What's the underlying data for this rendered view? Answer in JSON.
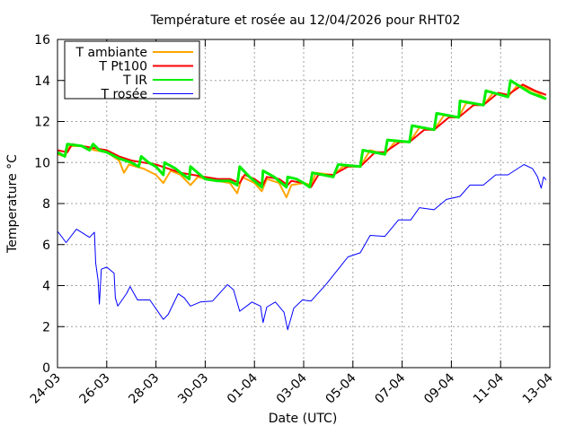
{
  "chart_data": {
    "type": "line",
    "title": "Température et rosée au 12/04/2026 pour RHT02",
    "xlabel": "Date (UTC)",
    "ylabel": "Temperature °C",
    "x_unit": "days since 24-03",
    "xlim": [
      0,
      20
    ],
    "ylim": [
      0,
      16
    ],
    "grid": true,
    "legend_position": "top-left",
    "x_ticks": [
      {
        "value": 0,
        "label": "24-03"
      },
      {
        "value": 2,
        "label": "26-03"
      },
      {
        "value": 4,
        "label": "28-03"
      },
      {
        "value": 6,
        "label": "30-03"
      },
      {
        "value": 8,
        "label": "01-04"
      },
      {
        "value": 10,
        "label": "03-04"
      },
      {
        "value": 12,
        "label": "05-04"
      },
      {
        "value": 14,
        "label": "07-04"
      },
      {
        "value": 16,
        "label": "09-04"
      },
      {
        "value": 18,
        "label": "11-04"
      },
      {
        "value": 20,
        "label": "13-04"
      }
    ],
    "y_ticks": [
      0,
      2,
      4,
      6,
      8,
      10,
      12,
      14,
      16
    ],
    "series": [
      {
        "name": "T ambiante",
        "color": "#ffa500",
        "points": [
          [
            0,
            10.4
          ],
          [
            0.3,
            10.3
          ],
          [
            0.5,
            10.8
          ],
          [
            1,
            10.8
          ],
          [
            1.5,
            10.6
          ],
          [
            2,
            10.5
          ],
          [
            2.5,
            10.1
          ],
          [
            2.7,
            9.5
          ],
          [
            2.9,
            9.9
          ],
          [
            3.5,
            9.7
          ],
          [
            4,
            9.4
          ],
          [
            4.3,
            9.0
          ],
          [
            4.6,
            9.6
          ],
          [
            5,
            9.4
          ],
          [
            5.4,
            8.9
          ],
          [
            5.7,
            9.3
          ],
          [
            6,
            9.2
          ],
          [
            6.5,
            9.1
          ],
          [
            7,
            9.0
          ],
          [
            7.3,
            8.5
          ],
          [
            7.5,
            9.3
          ],
          [
            8,
            9.0
          ],
          [
            8.3,
            8.6
          ],
          [
            8.5,
            9.2
          ],
          [
            9,
            9.0
          ],
          [
            9.3,
            8.3
          ],
          [
            9.5,
            8.9
          ],
          [
            10,
            9.0
          ],
          [
            10.3,
            8.9
          ],
          [
            10.5,
            9.5
          ],
          [
            11.2,
            9.4
          ],
          [
            11.6,
            9.8
          ],
          [
            12.3,
            9.8
          ],
          [
            12.7,
            10.6
          ],
          [
            13.3,
            10.4
          ],
          [
            13.7,
            11.0
          ],
          [
            14.3,
            11.0
          ],
          [
            14.7,
            11.7
          ],
          [
            15.3,
            11.6
          ],
          [
            15.7,
            12.3
          ],
          [
            16.3,
            12.2
          ],
          [
            16.6,
            12.9
          ],
          [
            17.3,
            12.8
          ],
          [
            17.7,
            13.4
          ],
          [
            18.3,
            13.2
          ],
          [
            18.7,
            13.8
          ],
          [
            19.5,
            13.4
          ],
          [
            19.85,
            13.1
          ]
        ]
      },
      {
        "name": "T Pt100",
        "color": "#ff0000",
        "points": [
          [
            0,
            10.6
          ],
          [
            0.4,
            10.5
          ],
          [
            0.6,
            10.9
          ],
          [
            1,
            10.8
          ],
          [
            1.5,
            10.7
          ],
          [
            2,
            10.6
          ],
          [
            2.5,
            10.3
          ],
          [
            3,
            10.1
          ],
          [
            3.5,
            10.0
          ],
          [
            4,
            9.9
          ],
          [
            4.5,
            9.7
          ],
          [
            5,
            9.5
          ],
          [
            5.5,
            9.4
          ],
          [
            6,
            9.3
          ],
          [
            6.5,
            9.2
          ],
          [
            7,
            9.2
          ],
          [
            7.4,
            9.0
          ],
          [
            7.6,
            9.4
          ],
          [
            8,
            9.2
          ],
          [
            8.35,
            8.9
          ],
          [
            8.5,
            9.3
          ],
          [
            9,
            9.2
          ],
          [
            9.35,
            8.9
          ],
          [
            9.5,
            9.1
          ],
          [
            10,
            9.0
          ],
          [
            10.3,
            8.8
          ],
          [
            10.6,
            9.4
          ],
          [
            11.2,
            9.4
          ],
          [
            11.8,
            9.8
          ],
          [
            12.3,
            9.8
          ],
          [
            12.9,
            10.5
          ],
          [
            13.3,
            10.5
          ],
          [
            13.9,
            11.0
          ],
          [
            14.3,
            11.0
          ],
          [
            14.9,
            11.6
          ],
          [
            15.3,
            11.6
          ],
          [
            15.9,
            12.2
          ],
          [
            16.3,
            12.2
          ],
          [
            16.9,
            12.8
          ],
          [
            17.3,
            12.8
          ],
          [
            17.9,
            13.4
          ],
          [
            18.3,
            13.3
          ],
          [
            18.9,
            13.8
          ],
          [
            19.4,
            13.5
          ],
          [
            19.85,
            13.3
          ]
        ]
      },
      {
        "name": "T IR",
        "color": "#00ee00",
        "points": [
          [
            0,
            10.5
          ],
          [
            0.3,
            10.3
          ],
          [
            0.4,
            10.9
          ],
          [
            1,
            10.8
          ],
          [
            1.3,
            10.6
          ],
          [
            1.45,
            10.9
          ],
          [
            1.7,
            10.6
          ],
          [
            2,
            10.5
          ],
          [
            2.5,
            10.2
          ],
          [
            3,
            10.0
          ],
          [
            3.3,
            9.8
          ],
          [
            3.4,
            10.3
          ],
          [
            3.7,
            10.0
          ],
          [
            4,
            9.8
          ],
          [
            4.3,
            9.4
          ],
          [
            4.35,
            10.0
          ],
          [
            4.8,
            9.7
          ],
          [
            5,
            9.5
          ],
          [
            5.35,
            9.2
          ],
          [
            5.4,
            9.8
          ],
          [
            5.8,
            9.4
          ],
          [
            6,
            9.2
          ],
          [
            6.5,
            9.1
          ],
          [
            7,
            9.1
          ],
          [
            7.3,
            8.9
          ],
          [
            7.4,
            9.8
          ],
          [
            7.8,
            9.3
          ],
          [
            8,
            9.1
          ],
          [
            8.3,
            8.8
          ],
          [
            8.35,
            9.6
          ],
          [
            8.8,
            9.3
          ],
          [
            9,
            9.1
          ],
          [
            9.3,
            8.8
          ],
          [
            9.35,
            9.3
          ],
          [
            9.7,
            9.2
          ],
          [
            10,
            9.0
          ],
          [
            10.25,
            8.8
          ],
          [
            10.35,
            9.5
          ],
          [
            11.2,
            9.3
          ],
          [
            11.4,
            9.9
          ],
          [
            12.3,
            9.8
          ],
          [
            12.4,
            10.6
          ],
          [
            13.3,
            10.4
          ],
          [
            13.4,
            11.1
          ],
          [
            14.3,
            11.0
          ],
          [
            14.4,
            11.8
          ],
          [
            15.3,
            11.6
          ],
          [
            15.4,
            12.4
          ],
          [
            16.3,
            12.2
          ],
          [
            16.35,
            13.0
          ],
          [
            17.3,
            12.8
          ],
          [
            17.4,
            13.5
          ],
          [
            18.3,
            13.2
          ],
          [
            18.4,
            14.0
          ],
          [
            19.2,
            13.4
          ],
          [
            19.85,
            13.1
          ]
        ]
      },
      {
        "name": "T rosée",
        "color": "#0000ff",
        "points": [
          [
            0,
            6.65
          ],
          [
            0.35,
            6.1
          ],
          [
            0.77,
            6.75
          ],
          [
            1.3,
            6.35
          ],
          [
            1.5,
            6.6
          ],
          [
            1.55,
            5.1
          ],
          [
            1.65,
            4.25
          ],
          [
            1.7,
            3.1
          ],
          [
            1.78,
            4.8
          ],
          [
            2.0,
            4.9
          ],
          [
            2.3,
            4.6
          ],
          [
            2.35,
            3.4
          ],
          [
            2.45,
            3.0
          ],
          [
            2.8,
            3.6
          ],
          [
            2.95,
            3.95
          ],
          [
            3.25,
            3.3
          ],
          [
            3.75,
            3.3
          ],
          [
            4.3,
            2.35
          ],
          [
            4.5,
            2.6
          ],
          [
            4.9,
            3.6
          ],
          [
            5.15,
            3.4
          ],
          [
            5.4,
            3.0
          ],
          [
            5.8,
            3.2
          ],
          [
            6.3,
            3.25
          ],
          [
            6.9,
            4.05
          ],
          [
            7.15,
            3.8
          ],
          [
            7.4,
            2.75
          ],
          [
            7.9,
            3.2
          ],
          [
            8.25,
            3.0
          ],
          [
            8.35,
            2.2
          ],
          [
            8.5,
            2.95
          ],
          [
            8.85,
            3.2
          ],
          [
            9.2,
            2.7
          ],
          [
            9.35,
            1.85
          ],
          [
            9.6,
            2.9
          ],
          [
            9.95,
            3.3
          ],
          [
            10.3,
            3.25
          ],
          [
            10.9,
            4.05
          ],
          [
            11.8,
            5.4
          ],
          [
            12.3,
            5.6
          ],
          [
            12.7,
            6.45
          ],
          [
            13.3,
            6.4
          ],
          [
            13.85,
            7.2
          ],
          [
            14.35,
            7.2
          ],
          [
            14.7,
            7.8
          ],
          [
            15.3,
            7.7
          ],
          [
            15.8,
            8.2
          ],
          [
            16.35,
            8.35
          ],
          [
            16.75,
            8.9
          ],
          [
            17.3,
            8.9
          ],
          [
            17.8,
            9.4
          ],
          [
            18.3,
            9.4
          ],
          [
            18.95,
            9.9
          ],
          [
            19.3,
            9.7
          ],
          [
            19.5,
            9.3
          ],
          [
            19.65,
            8.75
          ],
          [
            19.75,
            9.3
          ],
          [
            19.85,
            9.15
          ]
        ]
      }
    ]
  }
}
